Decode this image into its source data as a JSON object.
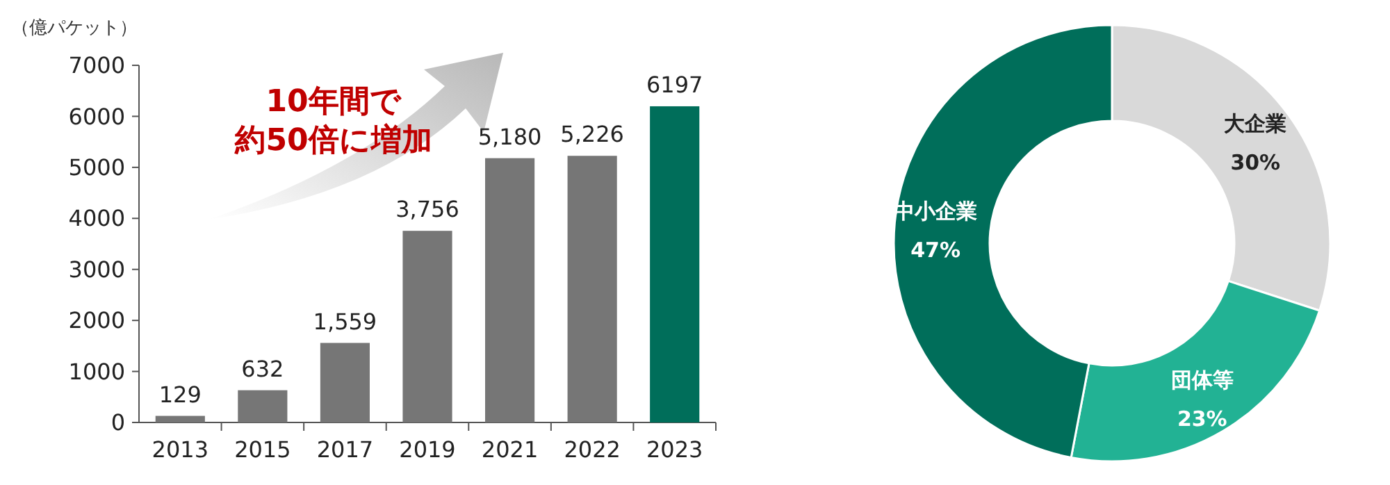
{
  "chart_data": [
    {
      "type": "bar",
      "ylabel": "（億パケット）",
      "categories": [
        "2013",
        "2015",
        "2017",
        "2019",
        "2021",
        "2022",
        "2023"
      ],
      "values": [
        129,
        632,
        1559,
        3756,
        5180,
        5226,
        6197
      ],
      "colors": [
        "#767676",
        "#767676",
        "#767676",
        "#767676",
        "#767676",
        "#767676",
        "#006e5a"
      ],
      "value_labels": [
        "129",
        "632",
        "1,559",
        "3,756",
        "5,180",
        "5,226",
        "6197"
      ],
      "ylim": [
        0,
        7000
      ],
      "yticks": [
        0,
        1000,
        2000,
        3000,
        4000,
        5000,
        6000,
        7000
      ],
      "annotations": [
        "10年間で",
        "約50倍に増加"
      ]
    },
    {
      "type": "donut",
      "categories": [
        "大企業",
        "団体等",
        "中小企業"
      ],
      "values": [
        30,
        23,
        47
      ],
      "colors": [
        "#d9d9d9",
        "#22b294",
        "#006e5a"
      ],
      "value_labels": [
        "30%",
        "23%",
        "47%"
      ]
    }
  ]
}
